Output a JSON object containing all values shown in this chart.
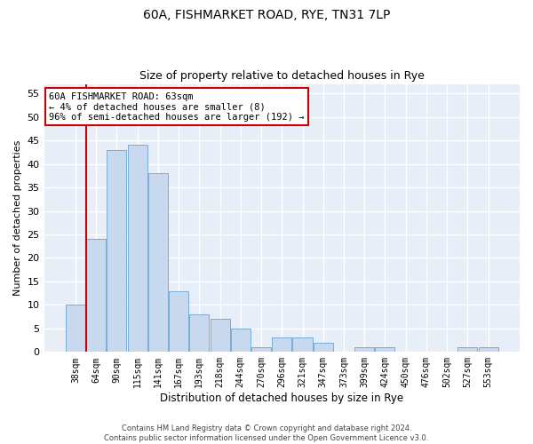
{
  "title_line1": "60A, FISHMARKET ROAD, RYE, TN31 7LP",
  "title_line2": "Size of property relative to detached houses in Rye",
  "xlabel": "Distribution of detached houses by size in Rye",
  "ylabel": "Number of detached properties",
  "categories": [
    "38sqm",
    "64sqm",
    "90sqm",
    "115sqm",
    "141sqm",
    "167sqm",
    "193sqm",
    "218sqm",
    "244sqm",
    "270sqm",
    "296sqm",
    "321sqm",
    "347sqm",
    "373sqm",
    "399sqm",
    "424sqm",
    "450sqm",
    "476sqm",
    "502sqm",
    "527sqm",
    "553sqm"
  ],
  "values": [
    10,
    24,
    43,
    44,
    38,
    13,
    8,
    7,
    5,
    1,
    3,
    3,
    2,
    0,
    1,
    1,
    0,
    0,
    0,
    1,
    1
  ],
  "bar_color": "#c8d8ee",
  "bar_edge_color": "#7aacd4",
  "ylim": [
    0,
    57
  ],
  "yticks": [
    0,
    5,
    10,
    15,
    20,
    25,
    30,
    35,
    40,
    45,
    50,
    55
  ],
  "vline_x_index": 0,
  "vline_color": "#cc0000",
  "annotation_text_line1": "60A FISHMARKET ROAD: 63sqm",
  "annotation_text_line2": "← 4% of detached houses are smaller (8)",
  "annotation_text_line3": "96% of semi-detached houses are larger (192) →",
  "annotation_box_color": "#cc0000",
  "annotation_box_facecolor": "white",
  "footer_line1": "Contains HM Land Registry data © Crown copyright and database right 2024.",
  "footer_line2": "Contains public sector information licensed under the Open Government Licence v3.0.",
  "fig_background_color": "#ffffff",
  "plot_background_color": "#e8eef8",
  "grid_color": "#ffffff"
}
